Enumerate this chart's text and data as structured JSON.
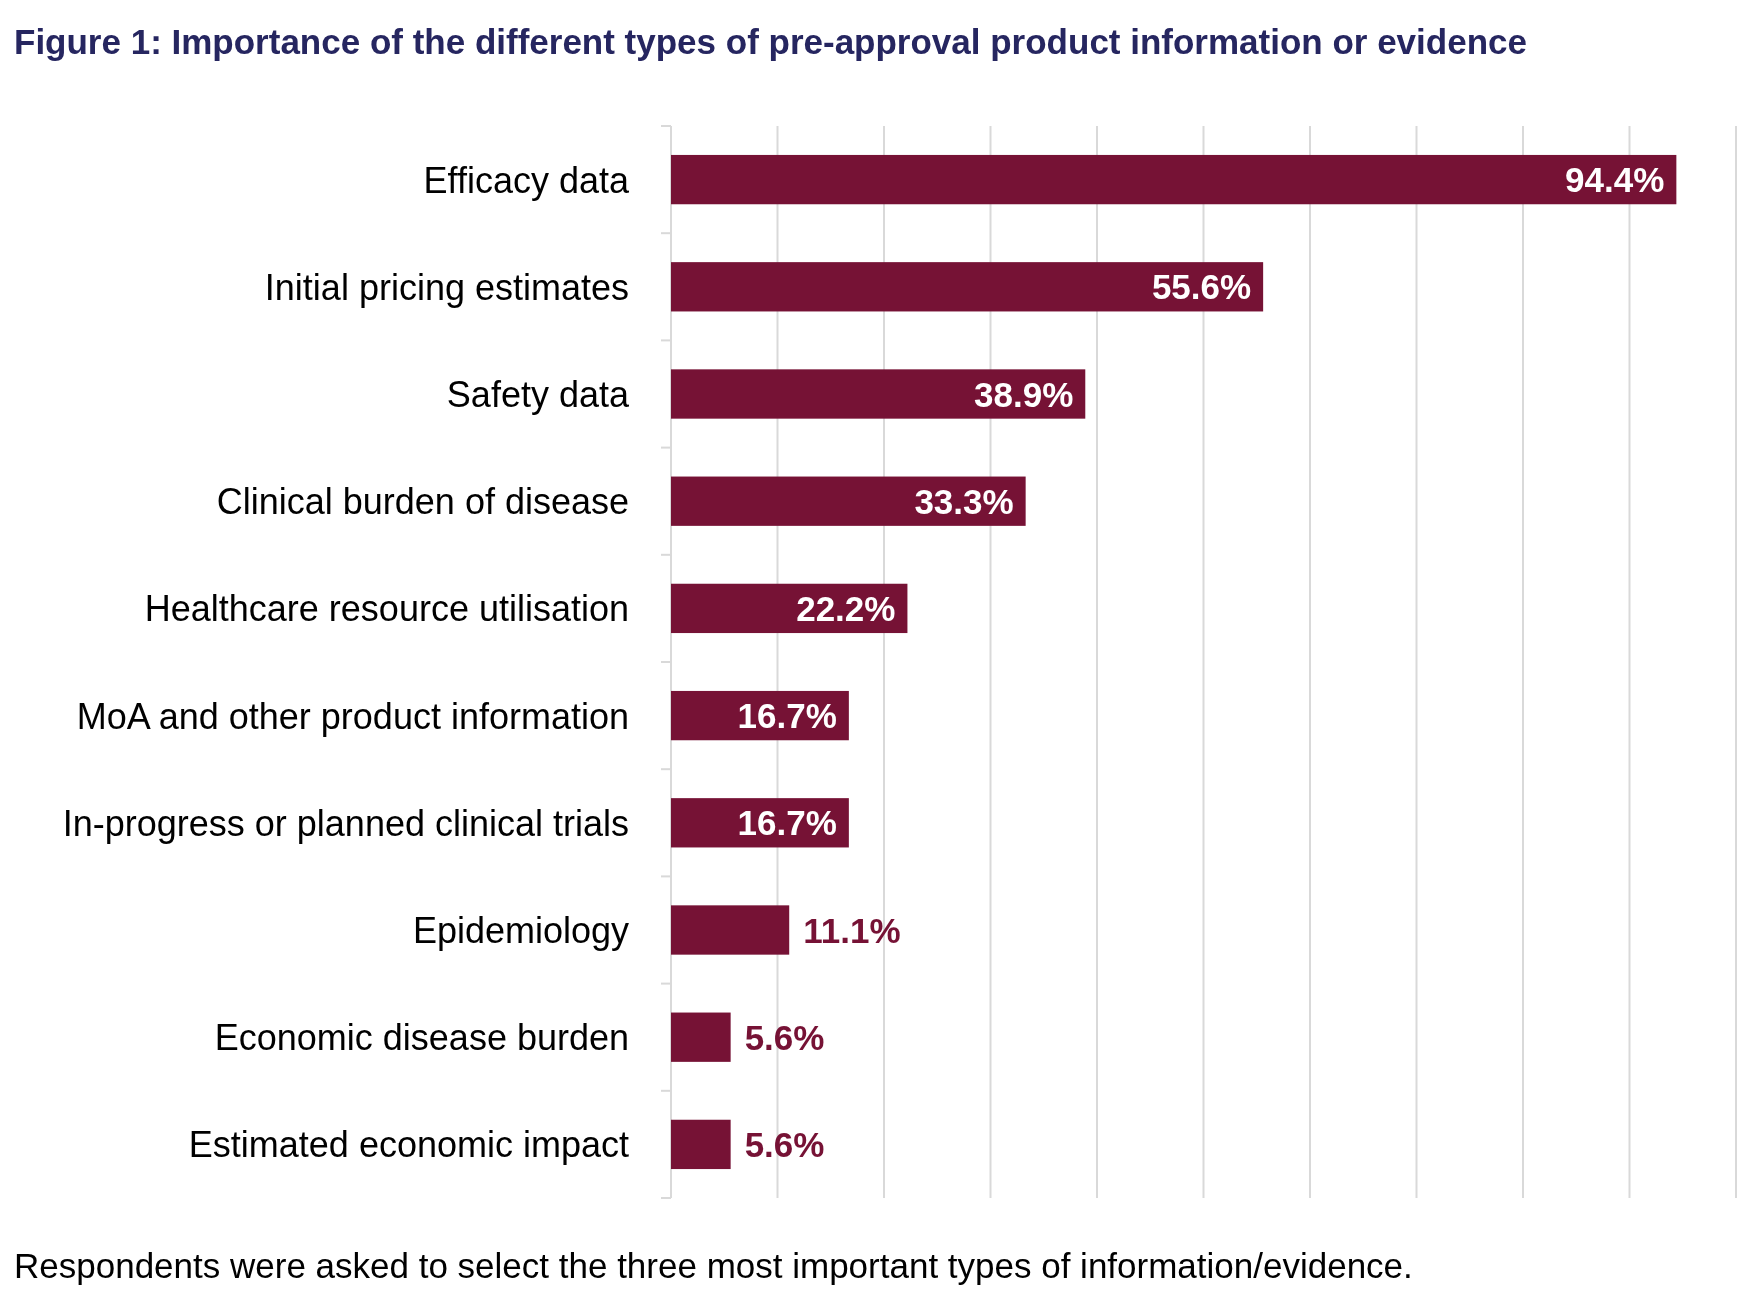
{
  "chart_data": {
    "type": "bar",
    "orientation": "horizontal",
    "title": "Figure 1: Importance of the different types of pre-approval product information or evidence",
    "categories": [
      "Efficacy data",
      "Initial pricing estimates",
      "Safety data",
      "Clinical burden of disease",
      "Healthcare resource utilisation",
      "MoA and other product information",
      "In-progress or planned clinical trials",
      "Epidemiology",
      "Economic disease burden",
      "Estimated economic impact"
    ],
    "values": [
      94.4,
      55.6,
      38.9,
      33.3,
      22.2,
      16.7,
      16.7,
      11.1,
      5.6,
      5.6
    ],
    "value_labels": [
      "94.4%",
      "55.6%",
      "38.9%",
      "33.3%",
      "22.2%",
      "16.7%",
      "16.7%",
      "11.1%",
      "5.6%",
      "5.6%"
    ],
    "color": "#761235",
    "xlim": [
      0,
      100
    ],
    "xticks": [
      {
        "value": 0,
        "label": null
      },
      {
        "value": 10,
        "label": null
      },
      {
        "value": 20,
        "label": null
      },
      {
        "value": 30,
        "label": null
      },
      {
        "value": 40,
        "label": null
      },
      {
        "value": 50,
        "label": null
      },
      {
        "value": 60,
        "label": null
      },
      {
        "value": 70,
        "label": null
      },
      {
        "value": 80,
        "label": null
      },
      {
        "value": 90,
        "label": null
      },
      {
        "value": 100,
        "label": null
      }
    ],
    "grid": "x",
    "tick_labels": "y",
    "annotations": [
      "Respondents were asked to select the three most important types of information/evidence."
    ]
  }
}
